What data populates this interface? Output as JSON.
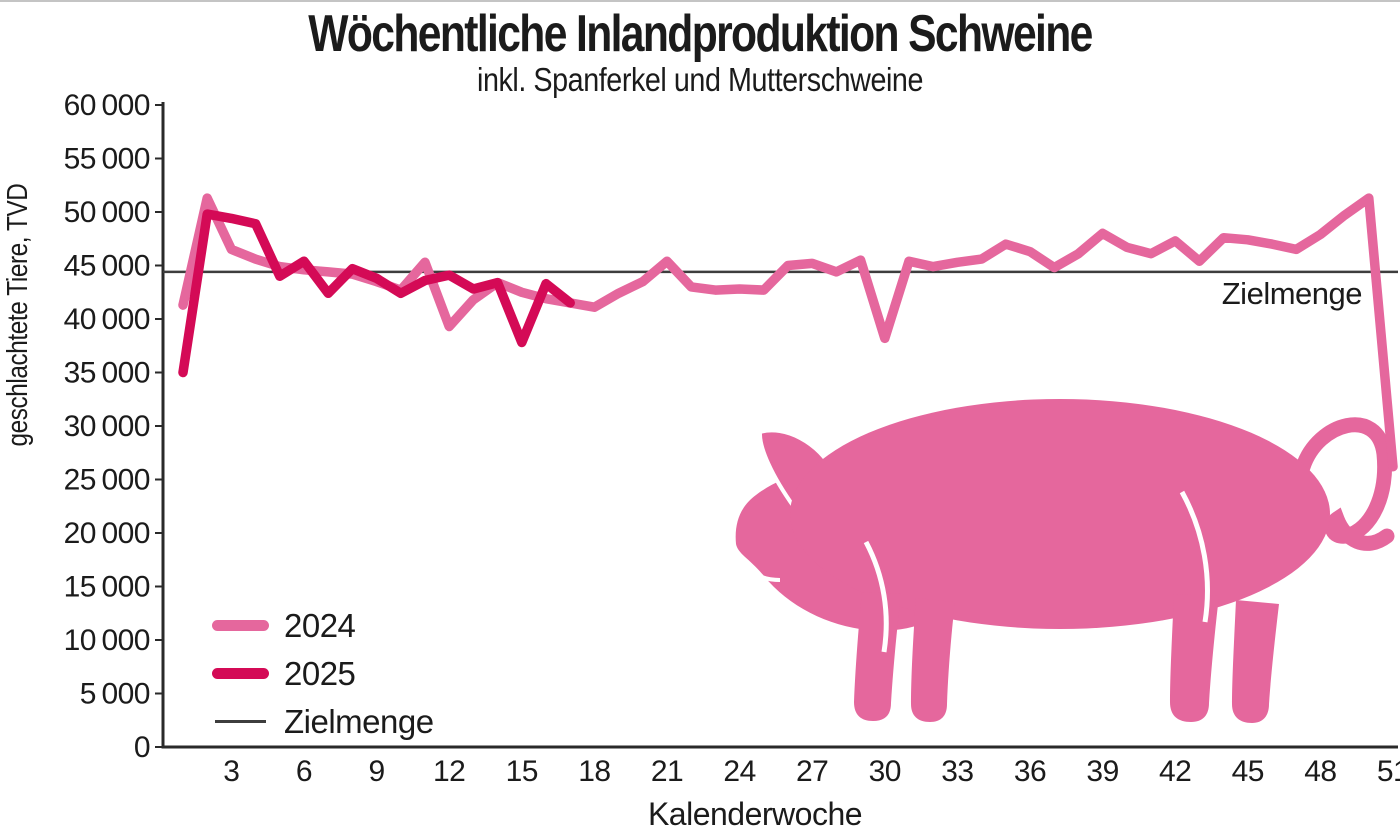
{
  "title": "Wöchentliche Inlandproduktion Schweine",
  "subtitle": "inkl. Spanferkel und Mutterschweine",
  "colors": {
    "line_2024": "#e5679d",
    "line_2025": "#d40a56",
    "pig": "#e5679d",
    "axis": "#2a2a2a",
    "target_line": "#3d3d3d",
    "text": "#1b1b1b"
  },
  "chart_data": {
    "type": "line",
    "title": "Wöchentliche Inlandproduktion Schweine",
    "subtitle": "inkl. Spanferkel und Mutterschweine",
    "xlabel": "Kalenderwoche",
    "ylabel": "geschlachtete Tiere, TVD",
    "x_axis": {
      "min": 1,
      "max": 51,
      "ticks": [
        3,
        6,
        9,
        12,
        15,
        18,
        21,
        24,
        27,
        30,
        33,
        36,
        39,
        42,
        45,
        48,
        51
      ]
    },
    "y_axis": {
      "min": 0,
      "max": 60000,
      "tick_step": 5000,
      "tick_format": "thin-space-thousands"
    },
    "grid": false,
    "legend_position": "bottom-left",
    "target_line": {
      "label": "Zielmenge",
      "value": 44400
    },
    "series": [
      {
        "name": "2024",
        "color": "#e5679d",
        "week_start": 1,
        "values": [
          41300,
          51300,
          46500,
          45600,
          44900,
          44600,
          44400,
          44200,
          43500,
          42700,
          45300,
          39300,
          41800,
          43400,
          42500,
          41900,
          41500,
          41100,
          42400,
          43500,
          45400,
          43000,
          42700,
          42800,
          42700,
          45000,
          45200,
          44400,
          45500,
          38200,
          45400,
          44900,
          45300,
          45600,
          47000,
          46300,
          44800,
          46100,
          48000,
          46700,
          46100,
          47300,
          45400,
          47600,
          47400,
          47000,
          46500,
          47900,
          49700,
          51300,
          26200
        ]
      },
      {
        "name": "2025",
        "color": "#d40a56",
        "week_start": 1,
        "values": [
          35000,
          49800,
          49400,
          48900,
          44000,
          45400,
          42400,
          44700,
          43800,
          42400,
          43600,
          44100,
          42800,
          43400,
          37800,
          43300,
          41500
        ]
      }
    ],
    "legend": [
      "2024",
      "2025",
      "Zielmenge"
    ]
  }
}
